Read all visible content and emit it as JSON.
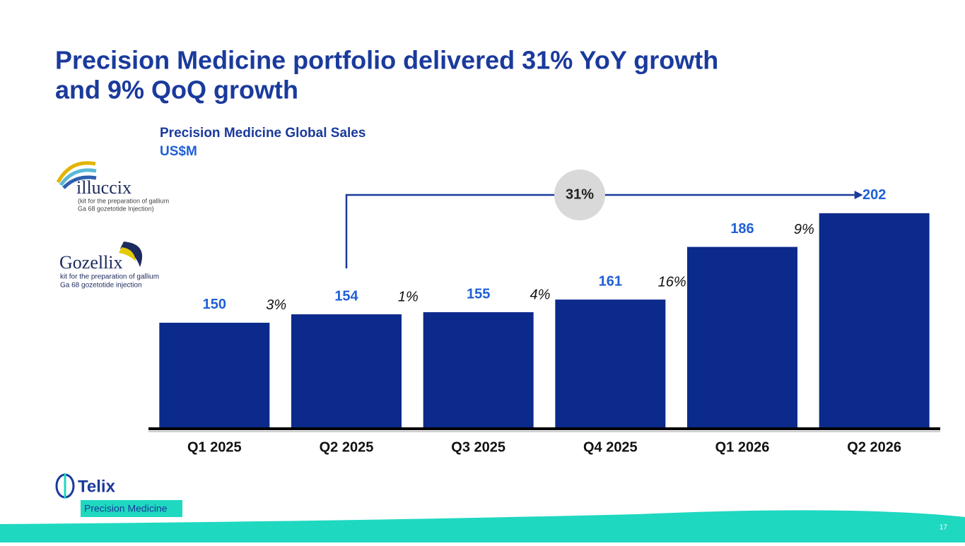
{
  "title_line1": "Precision Medicine portfolio delivered 31% YoY growth",
  "title_line2": "and 9% QoQ growth",
  "logos": {
    "illuccix": "illuccix",
    "illuccix_note1": "(kit for the preparation of gallium",
    "illuccix_note2": "Ga 68 gozetotide Injection)",
    "gozellix": "Gozellix",
    "gozellix_note1": "kit for the preparation of gallium",
    "gozellix_note2": "Ga 68 gozetotide injection",
    "telix": "Telix",
    "telix_tag": "Precision Medicine"
  },
  "page_number": "17",
  "chart_data": {
    "type": "bar",
    "title": "Precision Medicine Global Sales",
    "subtitle": "US$M",
    "categories": [
      "Q1 2025",
      "Q2 2025",
      "Q3 2025",
      "Q4 2025",
      "Q1 2026",
      "Q2 2026"
    ],
    "values": [
      150,
      154,
      155,
      161,
      186,
      202
    ],
    "color": "#0c2a8c",
    "label_color": "#1f5fd6",
    "ylim": [
      100,
      210
    ],
    "growth_labels": [
      "3%",
      "1%",
      "4%",
      "16%",
      "9%"
    ],
    "yoy_label": "31%"
  }
}
